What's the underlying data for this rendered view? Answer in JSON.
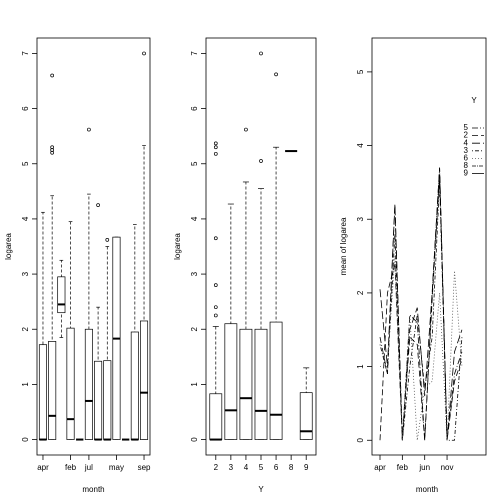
{
  "chart_data": [
    {
      "type": "box",
      "xlabel": "month",
      "ylabel": "logarea",
      "categories": [
        "apr",
        null,
        null,
        "feb",
        null,
        "jul",
        null,
        null,
        "may",
        null,
        null,
        "sep"
      ],
      "boxes": [
        {
          "whislo": 0,
          "q1": 0,
          "med": 0,
          "q3": 1.72,
          "whishi": 4.12,
          "fliers": []
        },
        {
          "whislo": 0,
          "q1": 0,
          "med": 0.43,
          "q3": 1.78,
          "whishi": 4.42,
          "fliers": [
            5.2,
            5.25,
            5.3,
            6.6
          ]
        },
        {
          "whislo": 1.85,
          "q1": 2.3,
          "med": 2.45,
          "q3": 2.95,
          "whishi": 3.25,
          "fliers": []
        },
        {
          "whislo": 0,
          "q1": 0,
          "med": 0.37,
          "q3": 2.02,
          "whishi": 3.95,
          "fliers": []
        },
        {
          "whislo": 0,
          "q1": 0,
          "med": 0,
          "q3": 0,
          "whishi": 0,
          "fliers": []
        },
        {
          "whislo": 0,
          "q1": 0,
          "med": 0.7,
          "q3": 2.0,
          "whishi": 4.45,
          "fliers": [
            5.62
          ]
        },
        {
          "whislo": 0,
          "q1": 0,
          "med": 0,
          "q3": 1.42,
          "whishi": 2.4,
          "fliers": [
            4.25
          ]
        },
        {
          "whislo": 0,
          "q1": 0,
          "med": 0,
          "q3": 1.43,
          "whishi": 3.5,
          "fliers": [
            3.62
          ]
        },
        {
          "whislo": 0,
          "q1": 0,
          "med": 1.83,
          "q3": 3.67,
          "whishi": 3.67,
          "fliers": []
        },
        {
          "whislo": 0,
          "q1": 0,
          "med": 0,
          "q3": 0,
          "whishi": 0,
          "fliers": []
        },
        {
          "whislo": 0,
          "q1": 0,
          "med": 0,
          "q3": 1.95,
          "whishi": 3.9,
          "fliers": []
        },
        {
          "whislo": 0,
          "q1": 0,
          "med": 0.85,
          "q3": 2.15,
          "whishi": 5.33,
          "fliers": [
            7.0
          ]
        }
      ],
      "ylim": [
        -0.28,
        7.28
      ],
      "yticks": [
        0,
        1,
        2,
        3,
        4,
        5,
        6,
        7
      ]
    },
    {
      "type": "box",
      "xlabel": "Y",
      "ylabel": "logarea",
      "categories": [
        "2",
        "3",
        "4",
        "5",
        "6",
        "8",
        "9"
      ],
      "boxes": [
        {
          "whislo": 0,
          "q1": 0,
          "med": 0,
          "q3": 0.83,
          "whishi": 2.05,
          "fliers": [
            2.25,
            2.4,
            2.8,
            3.65,
            5.18,
            5.3,
            5.37
          ]
        },
        {
          "whislo": 0,
          "q1": 0,
          "med": 0.53,
          "q3": 2.1,
          "whishi": 4.27,
          "fliers": []
        },
        {
          "whislo": 0,
          "q1": 0,
          "med": 0.75,
          "q3": 2.0,
          "whishi": 4.67,
          "fliers": [
            5.62
          ]
        },
        {
          "whislo": 0,
          "q1": 0,
          "med": 0.52,
          "q3": 2.0,
          "whishi": 4.55,
          "fliers": [
            5.05,
            7.0
          ]
        },
        {
          "whislo": 0,
          "q1": 0,
          "med": 0.45,
          "q3": 2.13,
          "whishi": 5.3,
          "fliers": [
            6.62
          ]
        },
        {
          "whislo": 5.23,
          "q1": 5.23,
          "med": 5.23,
          "q3": 5.23,
          "whishi": 5.23,
          "fliers": []
        },
        {
          "whislo": 0,
          "q1": 0,
          "med": 0.15,
          "q3": 0.85,
          "whishi": 1.3,
          "fliers": []
        }
      ],
      "ylim": [
        -0.28,
        7.28
      ],
      "yticks": [
        0,
        1,
        2,
        3,
        4,
        5,
        6,
        7
      ]
    },
    {
      "type": "line",
      "xlabel": "month",
      "ylabel": "mean of  logarea",
      "legend_title": "Y",
      "legend": "right",
      "categories": [
        "apr",
        null,
        null,
        "feb",
        null,
        null,
        "jun",
        null,
        null,
        "nov",
        null,
        null
      ],
      "series": [
        {
          "name": "5",
          "color": "#000000",
          "dash": "6,2,1,2",
          "values": [
            1.4,
            0.9,
            3.2,
            0,
            1.7,
            1.6,
            0,
            2.0,
            3.7,
            0,
            0.9,
            1.2
          ]
        },
        {
          "name": "2",
          "color": "#000000",
          "dash": "6,3",
          "values": [
            0,
            2.0,
            2.4,
            0,
            1.4,
            1.3,
            0,
            1.9,
            3.6,
            0,
            0.8,
            1.1
          ]
        },
        {
          "name": "4",
          "color": "#000000",
          "dash": "8,3",
          "values": [
            2.05,
            1.0,
            3.2,
            0,
            1.5,
            1.8,
            0.6,
            2.0,
            3.7,
            0,
            1.2,
            1.5
          ]
        },
        {
          "name": "3",
          "color": "#000000",
          "dash": "1,2,4,2",
          "values": [
            1.3,
            0.9,
            2.8,
            0,
            1.0,
            1.7,
            0.7,
            1.4,
            3.5,
            0,
            0,
            1.4
          ]
        },
        {
          "name": "6",
          "color": "#555555",
          "dash": "1,2",
          "values": [
            1.0,
            1.0,
            2.5,
            0,
            1.7,
            0,
            0.7,
            0.8,
            2.0,
            0,
            2.3,
            1.0
          ]
        },
        {
          "name": "8",
          "color": "#000000",
          "dash": "4,1,1,1",
          "values": [
            null,
            null,
            null,
            null,
            null,
            null,
            null,
            null,
            null,
            null,
            null,
            5.23
          ]
        },
        {
          "name": "9",
          "color": "#000000",
          "dash": "",
          "values": [
            null,
            null,
            null,
            null,
            0.15,
            null,
            null,
            null,
            null,
            null,
            null,
            null
          ]
        }
      ],
      "ylim": [
        -0.2,
        5.46
      ],
      "yticks": [
        0,
        1,
        2,
        3,
        4,
        5
      ]
    }
  ]
}
